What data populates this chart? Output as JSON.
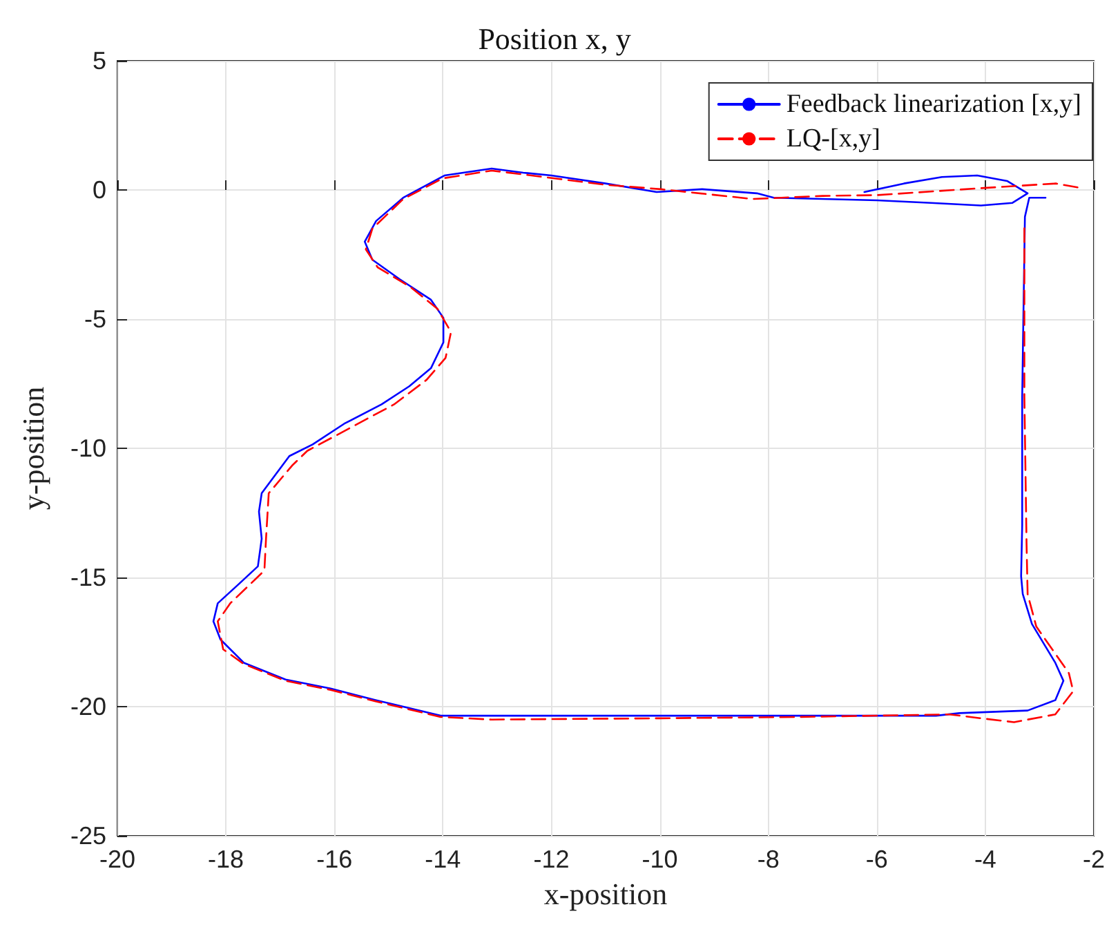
{
  "chart_data": {
    "type": "line",
    "title": "Position x, y",
    "xlabel": "x-position",
    "ylabel": "y-position",
    "xlim": [
      -20,
      -2
    ],
    "xticks": [
      -20,
      -18,
      -16,
      -14,
      -12,
      -10,
      -8,
      -6,
      -4,
      -2
    ],
    "ylim": [
      -25,
      5
    ],
    "yticks": [
      -25,
      -20,
      -15,
      -10,
      -5,
      0,
      5
    ],
    "grid": true,
    "legend": "top right",
    "marker": "none",
    "series": [
      {
        "name": "Feedback linearization [x,y]",
        "color": "#0000ff",
        "line_style": "solid",
        "x": [
          -6.23,
          -5.5,
          -4.8,
          -4.15,
          -3.6,
          -3.22,
          -3.5,
          -4.08,
          -5,
          -6,
          -7.9,
          -8.21,
          -9.22,
          -10.06,
          -11,
          -12.0,
          -12.52,
          -13.1,
          -13.97,
          -14.73,
          -15.23,
          -15.44,
          -15.3,
          -14.8,
          -14.22,
          -13.99,
          -13.99,
          -14.22,
          -14.62,
          -15.13,
          -15.82,
          -16.4,
          -16.83,
          -17.34,
          -17.39,
          -17.34,
          -17.41,
          -17.77,
          -18.15,
          -18.23,
          -18.1,
          -17.67,
          -16.9,
          -16.07,
          -15.23,
          -14.04,
          -12.27,
          -10,
          -8,
          -6,
          -4.91,
          -4.48,
          -3.22,
          -2.71,
          -2.56,
          -2.71,
          -3.14,
          -3.31,
          -3.34,
          -3.32,
          -3.32,
          -3.27,
          -3.19,
          -2.89
        ],
        "values": [
          -0.08,
          0.25,
          0.5,
          0.56,
          0.35,
          -0.13,
          -0.5,
          -0.6,
          -0.5,
          -0.4,
          -0.3,
          -0.13,
          0.03,
          -0.08,
          0.25,
          0.56,
          0.67,
          0.83,
          0.56,
          -0.3,
          -1.2,
          -2.0,
          -2.7,
          -3.45,
          -4.25,
          -4.95,
          -5.9,
          -6.9,
          -7.6,
          -8.3,
          -9.05,
          -9.85,
          -10.3,
          -11.74,
          -12.45,
          -13.5,
          -14.57,
          -15.27,
          -16.0,
          -16.7,
          -17.4,
          -18.3,
          -18.95,
          -19.3,
          -19.75,
          -20.35,
          -20.35,
          -20.35,
          -20.35,
          -20.35,
          -20.35,
          -20.25,
          -20.15,
          -19.75,
          -19.0,
          -18.3,
          -16.8,
          -15.64,
          -14.95,
          -12.97,
          -8.0,
          -1.04,
          -0.3,
          -0.3
        ]
      },
      {
        "name": "LQ-[x,y]",
        "color": "#ff0000",
        "line_style": "dashed",
        "x": [
          -2.3,
          -2.7,
          -4.08,
          -6,
          -7.0,
          -8.29,
          -9.98,
          -11,
          -12.52,
          -13.1,
          -14.0,
          -14.73,
          -15.3,
          -15.42,
          -15.2,
          -14.6,
          -14.1,
          -13.85,
          -13.95,
          -14.3,
          -14.9,
          -15.7,
          -16.5,
          -16.78,
          -17.21,
          -17.26,
          -17.29,
          -17.92,
          -18.15,
          -18.05,
          -17.67,
          -16.9,
          -16.07,
          -15.23,
          -14.04,
          -13.1,
          -10,
          -7.45,
          -4.66,
          -4.08,
          -3.47,
          -2.71,
          -2.38,
          -2.46,
          -3.06,
          -3.22,
          -3.24,
          -3.28,
          -3.28
        ],
        "values": [
          0.1,
          0.25,
          0.07,
          -0.2,
          -0.23,
          -0.35,
          0.03,
          0.2,
          0.6,
          0.75,
          0.45,
          -0.35,
          -1.5,
          -2.3,
          -3.0,
          -3.75,
          -4.6,
          -5.5,
          -6.5,
          -7.35,
          -8.3,
          -9.2,
          -10.1,
          -10.67,
          -11.74,
          -13.5,
          -14.73,
          -16.0,
          -16.7,
          -17.78,
          -18.35,
          -19.0,
          -19.35,
          -19.8,
          -20.4,
          -20.5,
          -20.45,
          -20.4,
          -20.3,
          -20.45,
          -20.6,
          -20.3,
          -19.4,
          -18.7,
          -16.9,
          -15.65,
          -13.67,
          -8.0,
          -1.4
        ]
      }
    ]
  }
}
